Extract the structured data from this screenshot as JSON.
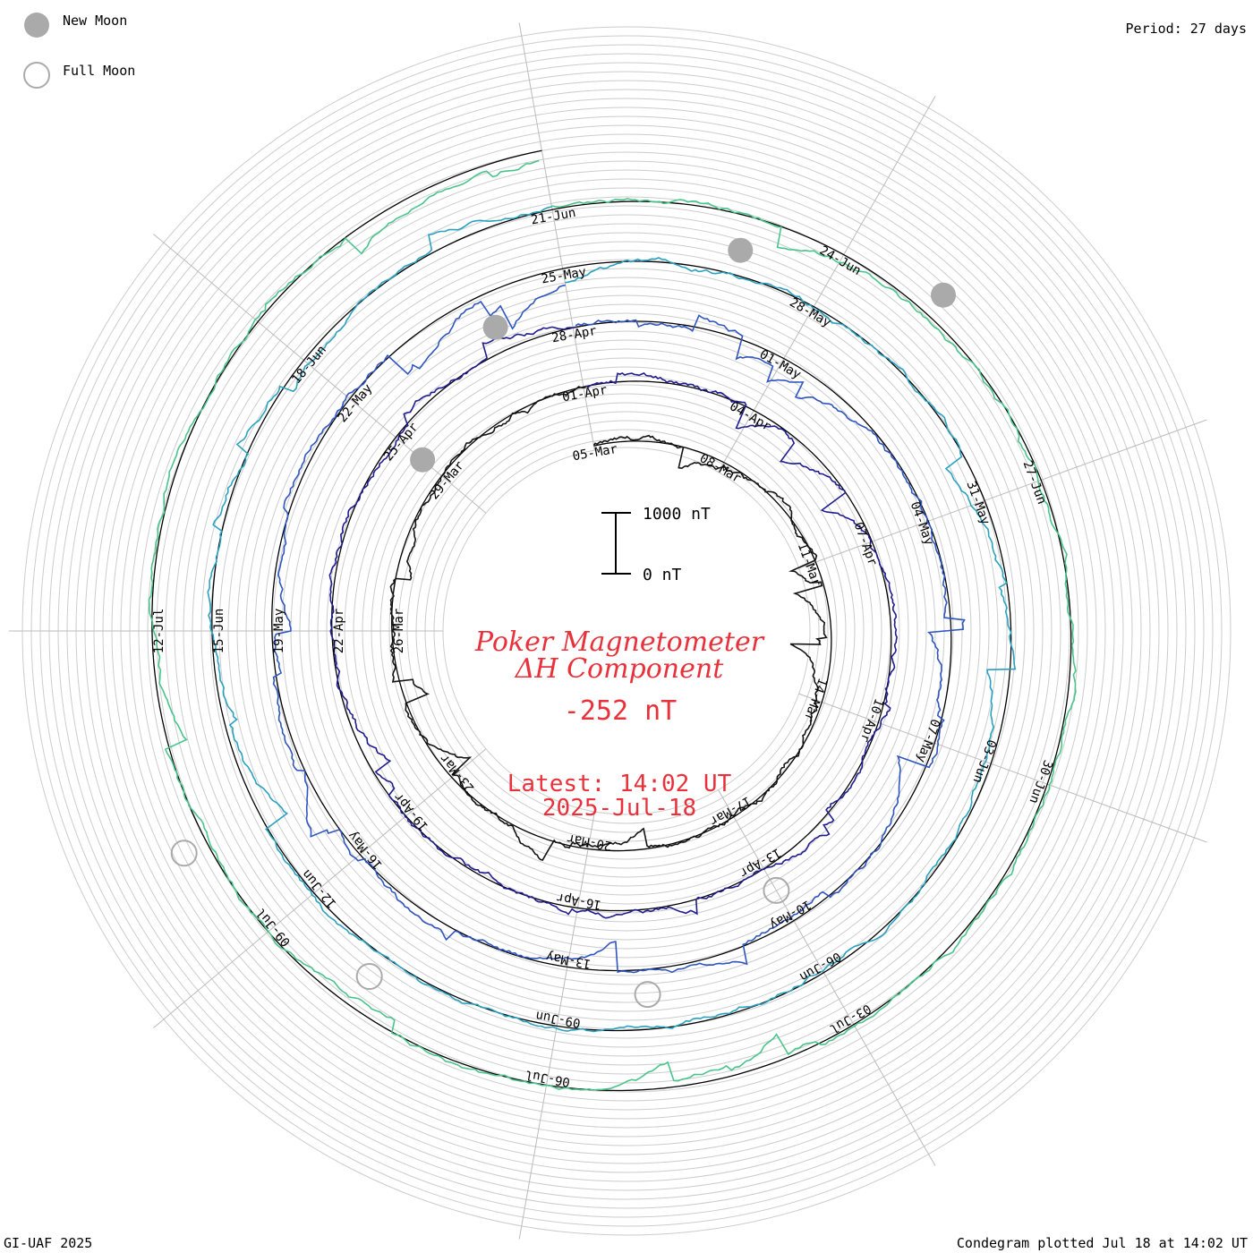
{
  "legend": {
    "new_moon_label": "New Moon",
    "full_moon_label": "Full Moon",
    "new_moon_color": "#aaaaaa",
    "full_moon_color": "#aaaaaa"
  },
  "header": {
    "period_label": "Period: 27 days"
  },
  "center": {
    "title_line1": "Poker Magnetometer",
    "title_line2": "ΔH Component",
    "current_value": "-252 nT",
    "latest_label": "Latest: 14:02 UT",
    "latest_date": "2025-Jul-18",
    "scale_top_label": "1000 nT",
    "scale_bottom_label": "0 nT",
    "text_color": "#e8313a"
  },
  "footer": {
    "credit": "GI-UAF 2025",
    "plotted": "Condegram plotted Jul 18 at 14:02 UT"
  },
  "chart_data": {
    "type": "condegram-spiral",
    "period_days": 27,
    "scale_nT": 1000,
    "date_labels": [
      "05-Mar",
      "08-Mar",
      "11-Mar",
      "14-Mar",
      "17-Mar",
      "20-Mar",
      "23-Mar",
      "26-Mar",
      "29-Mar",
      "01-Apr",
      "04-Apr",
      "07-Apr",
      "10-Apr",
      "13-Apr",
      "16-Apr",
      "19-Apr",
      "22-Apr",
      "25-Apr",
      "28-Apr",
      "01-May",
      "04-May",
      "07-May",
      "10-May",
      "13-May",
      "16-May",
      "19-May",
      "22-May",
      "25-May",
      "28-May",
      "31-May",
      "03-Jun",
      "06-Jun",
      "09-Jun",
      "12-Jun",
      "15-Jun",
      "18-Jun",
      "21-Jun",
      "24-Jun",
      "27-Jun",
      "30-Jun",
      "03-Jul",
      "06-Jul",
      "09-Jul",
      "12-Jul"
    ],
    "cycles": [
      {
        "start": "05-Mar",
        "color": "#141414"
      },
      {
        "start": "01-Apr",
        "color": "#1f1c8f"
      },
      {
        "start": "28-Apr",
        "color": "#2f55c0"
      },
      {
        "start": "25-May",
        "color": "#2aa1bf"
      },
      {
        "start": "21-Jun",
        "color": "#28b9a6"
      }
    ],
    "turn_colors": [
      "#141414",
      "#1f1c8f",
      "#2f55c0",
      "#2aa1bf",
      "#49c48a",
      "#8dbf28",
      "#b59a1a",
      "#c9771f",
      "#b5351e"
    ],
    "new_moon_dates": [
      "29-Mar",
      "27-Apr",
      "27-May",
      "25-Jun"
    ],
    "full_moon_dates": [
      "13-Apr",
      "12-May",
      "11-Jun",
      "10-Jul"
    ]
  }
}
